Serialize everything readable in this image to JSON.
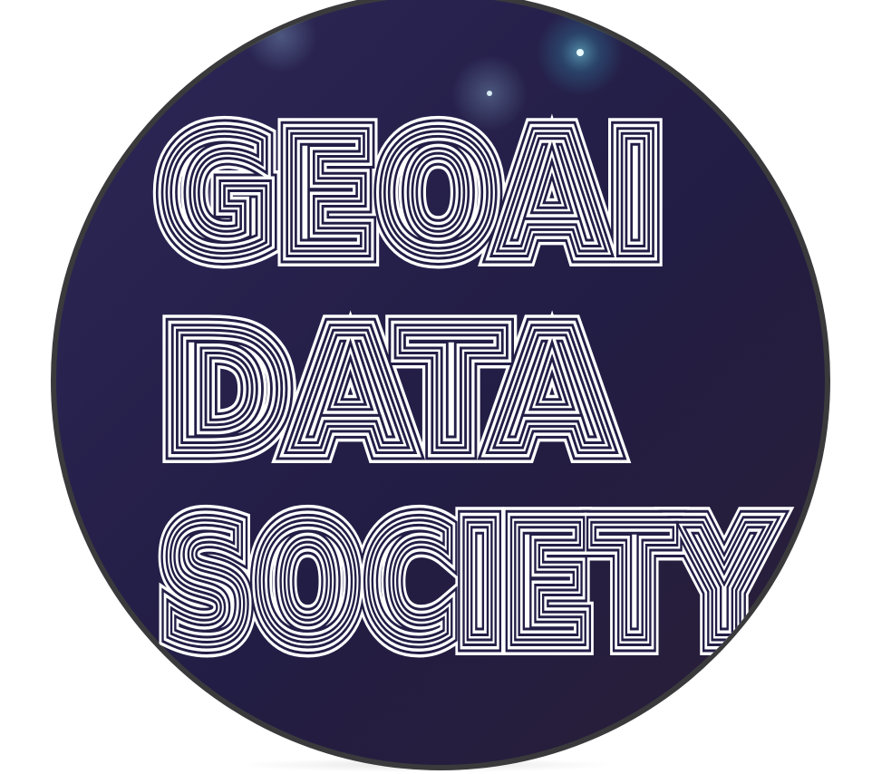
{
  "logo": {
    "lines": [
      "GEOAI",
      "DATA",
      "SOCIETY"
    ],
    "colors": {
      "disc_inner": "#2a2350",
      "disc_outer": "#1e1a3a",
      "ring": "#3a3a3c",
      "text": "#ffffff",
      "glow": "#5fd0e6"
    }
  }
}
